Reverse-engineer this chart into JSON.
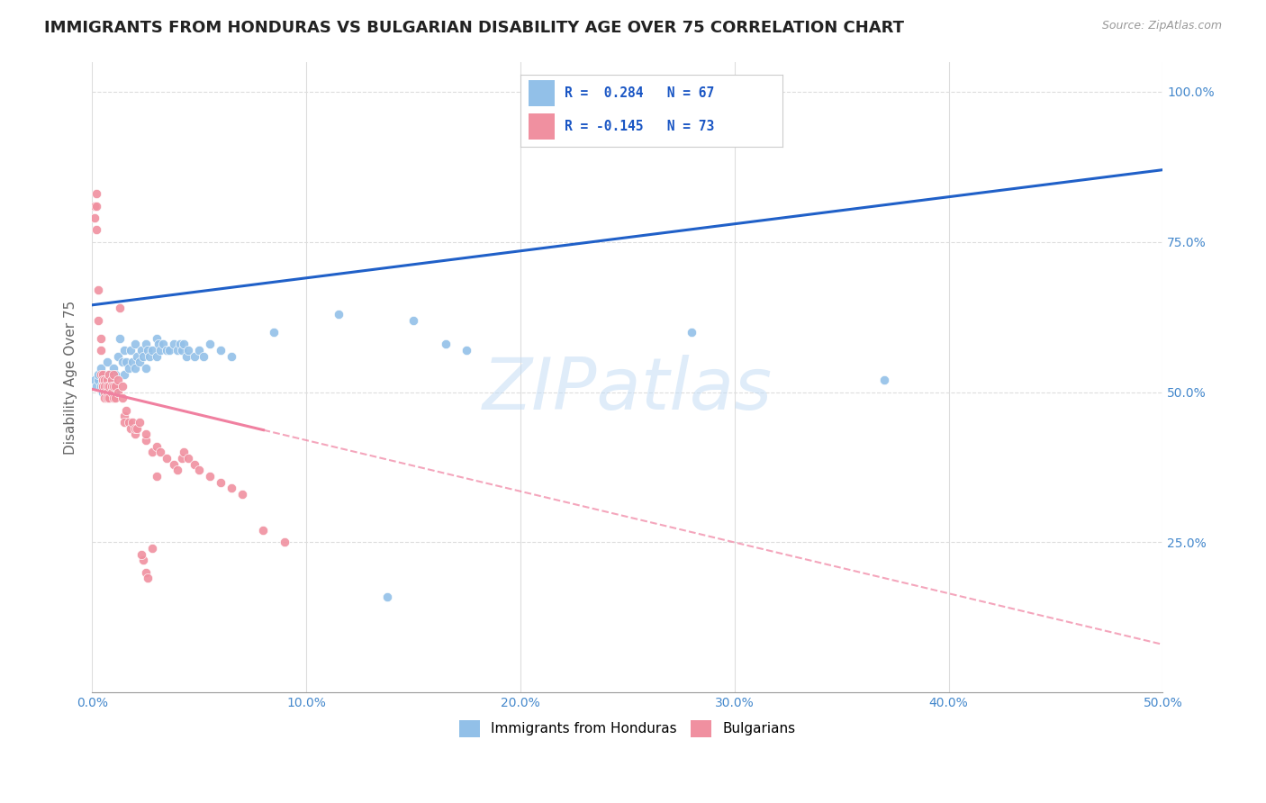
{
  "title": "IMMIGRANTS FROM HONDURAS VS BULGARIAN DISABILITY AGE OVER 75 CORRELATION CHART",
  "source": "Source: ZipAtlas.com",
  "ylabel": "Disability Age Over 75",
  "xlim": [
    0.0,
    0.5
  ],
  "ylim": [
    0.0,
    1.05
  ],
  "watermark": "ZIPatlas",
  "legend_label_1": "Immigrants from Honduras",
  "legend_label_2": "Bulgarians",
  "blue_color": "#92c0e8",
  "pink_color": "#f090a0",
  "blue_line_color": "#2060c8",
  "pink_line_color": "#f080a0",
  "blue_scatter": [
    [
      0.001,
      0.52
    ],
    [
      0.002,
      0.51
    ],
    [
      0.003,
      0.52
    ],
    [
      0.003,
      0.53
    ],
    [
      0.004,
      0.51
    ],
    [
      0.004,
      0.54
    ],
    [
      0.005,
      0.52
    ],
    [
      0.005,
      0.5
    ],
    [
      0.006,
      0.51
    ],
    [
      0.006,
      0.53
    ],
    [
      0.007,
      0.55
    ],
    [
      0.007,
      0.51
    ],
    [
      0.008,
      0.53
    ],
    [
      0.008,
      0.5
    ],
    [
      0.009,
      0.52
    ],
    [
      0.01,
      0.54
    ],
    [
      0.01,
      0.51
    ],
    [
      0.011,
      0.53
    ],
    [
      0.011,
      0.5
    ],
    [
      0.012,
      0.56
    ],
    [
      0.013,
      0.59
    ],
    [
      0.014,
      0.55
    ],
    [
      0.015,
      0.57
    ],
    [
      0.015,
      0.53
    ],
    [
      0.016,
      0.55
    ],
    [
      0.017,
      0.54
    ],
    [
      0.018,
      0.57
    ],
    [
      0.019,
      0.55
    ],
    [
      0.02,
      0.58
    ],
    [
      0.02,
      0.54
    ],
    [
      0.021,
      0.56
    ],
    [
      0.022,
      0.55
    ],
    [
      0.023,
      0.57
    ],
    [
      0.024,
      0.56
    ],
    [
      0.025,
      0.58
    ],
    [
      0.025,
      0.54
    ],
    [
      0.026,
      0.57
    ],
    [
      0.027,
      0.56
    ],
    [
      0.028,
      0.57
    ],
    [
      0.03,
      0.59
    ],
    [
      0.03,
      0.56
    ],
    [
      0.031,
      0.58
    ],
    [
      0.032,
      0.57
    ],
    [
      0.033,
      0.58
    ],
    [
      0.035,
      0.57
    ],
    [
      0.036,
      0.57
    ],
    [
      0.038,
      0.58
    ],
    [
      0.04,
      0.57
    ],
    [
      0.041,
      0.58
    ],
    [
      0.042,
      0.57
    ],
    [
      0.043,
      0.58
    ],
    [
      0.044,
      0.56
    ],
    [
      0.045,
      0.57
    ],
    [
      0.048,
      0.56
    ],
    [
      0.05,
      0.57
    ],
    [
      0.052,
      0.56
    ],
    [
      0.055,
      0.58
    ],
    [
      0.06,
      0.57
    ],
    [
      0.065,
      0.56
    ],
    [
      0.085,
      0.6
    ],
    [
      0.115,
      0.63
    ],
    [
      0.138,
      0.16
    ],
    [
      0.15,
      0.62
    ],
    [
      0.165,
      0.58
    ],
    [
      0.175,
      0.57
    ],
    [
      0.28,
      0.6
    ],
    [
      0.37,
      0.52
    ]
  ],
  "pink_scatter": [
    [
      0.001,
      0.81
    ],
    [
      0.001,
      0.79
    ],
    [
      0.002,
      0.81
    ],
    [
      0.002,
      0.77
    ],
    [
      0.002,
      0.83
    ],
    [
      0.003,
      0.67
    ],
    [
      0.003,
      0.62
    ],
    [
      0.004,
      0.59
    ],
    [
      0.004,
      0.57
    ],
    [
      0.004,
      0.53
    ],
    [
      0.005,
      0.53
    ],
    [
      0.005,
      0.52
    ],
    [
      0.005,
      0.51
    ],
    [
      0.005,
      0.51
    ],
    [
      0.006,
      0.52
    ],
    [
      0.006,
      0.51
    ],
    [
      0.006,
      0.5
    ],
    [
      0.006,
      0.49
    ],
    [
      0.007,
      0.52
    ],
    [
      0.007,
      0.51
    ],
    [
      0.007,
      0.5
    ],
    [
      0.007,
      0.49
    ],
    [
      0.008,
      0.53
    ],
    [
      0.008,
      0.51
    ],
    [
      0.008,
      0.49
    ],
    [
      0.009,
      0.52
    ],
    [
      0.009,
      0.51
    ],
    [
      0.009,
      0.5
    ],
    [
      0.01,
      0.53
    ],
    [
      0.01,
      0.51
    ],
    [
      0.01,
      0.49
    ],
    [
      0.011,
      0.51
    ],
    [
      0.011,
      0.49
    ],
    [
      0.012,
      0.52
    ],
    [
      0.012,
      0.5
    ],
    [
      0.013,
      0.64
    ],
    [
      0.014,
      0.51
    ],
    [
      0.014,
      0.49
    ],
    [
      0.015,
      0.46
    ],
    [
      0.015,
      0.45
    ],
    [
      0.016,
      0.47
    ],
    [
      0.017,
      0.45
    ],
    [
      0.018,
      0.44
    ],
    [
      0.019,
      0.45
    ],
    [
      0.02,
      0.43
    ],
    [
      0.02,
      0.44
    ],
    [
      0.021,
      0.44
    ],
    [
      0.022,
      0.45
    ],
    [
      0.025,
      0.42
    ],
    [
      0.025,
      0.43
    ],
    [
      0.028,
      0.4
    ],
    [
      0.03,
      0.41
    ],
    [
      0.032,
      0.4
    ],
    [
      0.035,
      0.39
    ],
    [
      0.038,
      0.38
    ],
    [
      0.04,
      0.37
    ],
    [
      0.042,
      0.39
    ],
    [
      0.043,
      0.4
    ],
    [
      0.045,
      0.39
    ],
    [
      0.048,
      0.38
    ],
    [
      0.05,
      0.37
    ],
    [
      0.055,
      0.36
    ],
    [
      0.06,
      0.35
    ],
    [
      0.065,
      0.34
    ],
    [
      0.07,
      0.33
    ],
    [
      0.024,
      0.22
    ],
    [
      0.025,
      0.2
    ],
    [
      0.026,
      0.19
    ],
    [
      0.023,
      0.23
    ],
    [
      0.028,
      0.24
    ],
    [
      0.03,
      0.36
    ],
    [
      0.08,
      0.27
    ],
    [
      0.09,
      0.25
    ]
  ],
  "background_color": "#ffffff",
  "grid_color": "#dddddd",
  "tick_color": "#4488cc",
  "title_fontsize": 13,
  "axis_label_fontsize": 11,
  "blue_line_x0": 0.0,
  "blue_line_y0": 0.645,
  "blue_line_x1": 0.5,
  "blue_line_y1": 0.87,
  "pink_line_x0": 0.0,
  "pink_line_y0": 0.505,
  "pink_line_x1": 0.5,
  "pink_line_y1": 0.08
}
